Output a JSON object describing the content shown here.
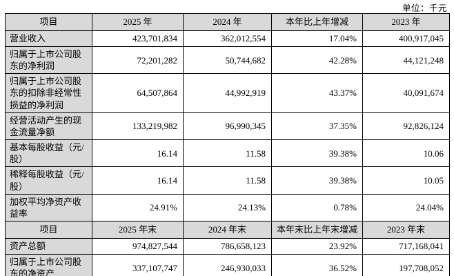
{
  "unit_label": "单位：千元",
  "colors": {
    "header_bg": "#d9d9d9",
    "border": "#000000",
    "page_bg": "#ffffff"
  },
  "table": {
    "rows": [
      {
        "type": "header",
        "cells": [
          "项目",
          "2025 年",
          "2024 年",
          "本年比上年增减",
          "2023 年"
        ]
      },
      {
        "type": "data",
        "label": "营业收入",
        "values": [
          "423,701,834",
          "362,012,554",
          "17.04%",
          "400,917,045"
        ]
      },
      {
        "type": "data",
        "label": "归属于上市公司股东的净利润",
        "values": [
          "72,201,282",
          "50,744,682",
          "42.28%",
          "44,121,248"
        ]
      },
      {
        "type": "data",
        "label": "归属于上市公司股东的扣除非经常性损益的净利润",
        "values": [
          "64,507,864",
          "44,992,919",
          "43.37%",
          "40,091,674"
        ]
      },
      {
        "type": "data",
        "label": "经营活动产生的现金流量净额",
        "values": [
          "133,219,982",
          "96,990,345",
          "37.35%",
          "92,826,124"
        ]
      },
      {
        "type": "data",
        "label": "基本每股收益（元/股）",
        "values": [
          "16.14",
          "11.58",
          "39.38%",
          "10.06"
        ]
      },
      {
        "type": "data",
        "label": "稀释每股收益（元/股）",
        "values": [
          "16.14",
          "11.58",
          "39.38%",
          "10.05"
        ]
      },
      {
        "type": "data",
        "label": "加权平均净资产收益率",
        "values": [
          "24.91%",
          "24.13%",
          "0.78%",
          "24.04%"
        ]
      },
      {
        "type": "header",
        "cells": [
          "项目",
          "2025 年末",
          "2024 年末",
          "本年末比上年末增减",
          "2023 年末"
        ]
      },
      {
        "type": "data",
        "label": "资产总额",
        "values": [
          "974,827,544",
          "786,658,123",
          "23.92%",
          "717,168,041"
        ]
      },
      {
        "type": "data",
        "label": "归属于上市公司股东的净资产",
        "values": [
          "337,107,747",
          "246,930,033",
          "36.52%",
          "197,708,052"
        ]
      }
    ]
  }
}
